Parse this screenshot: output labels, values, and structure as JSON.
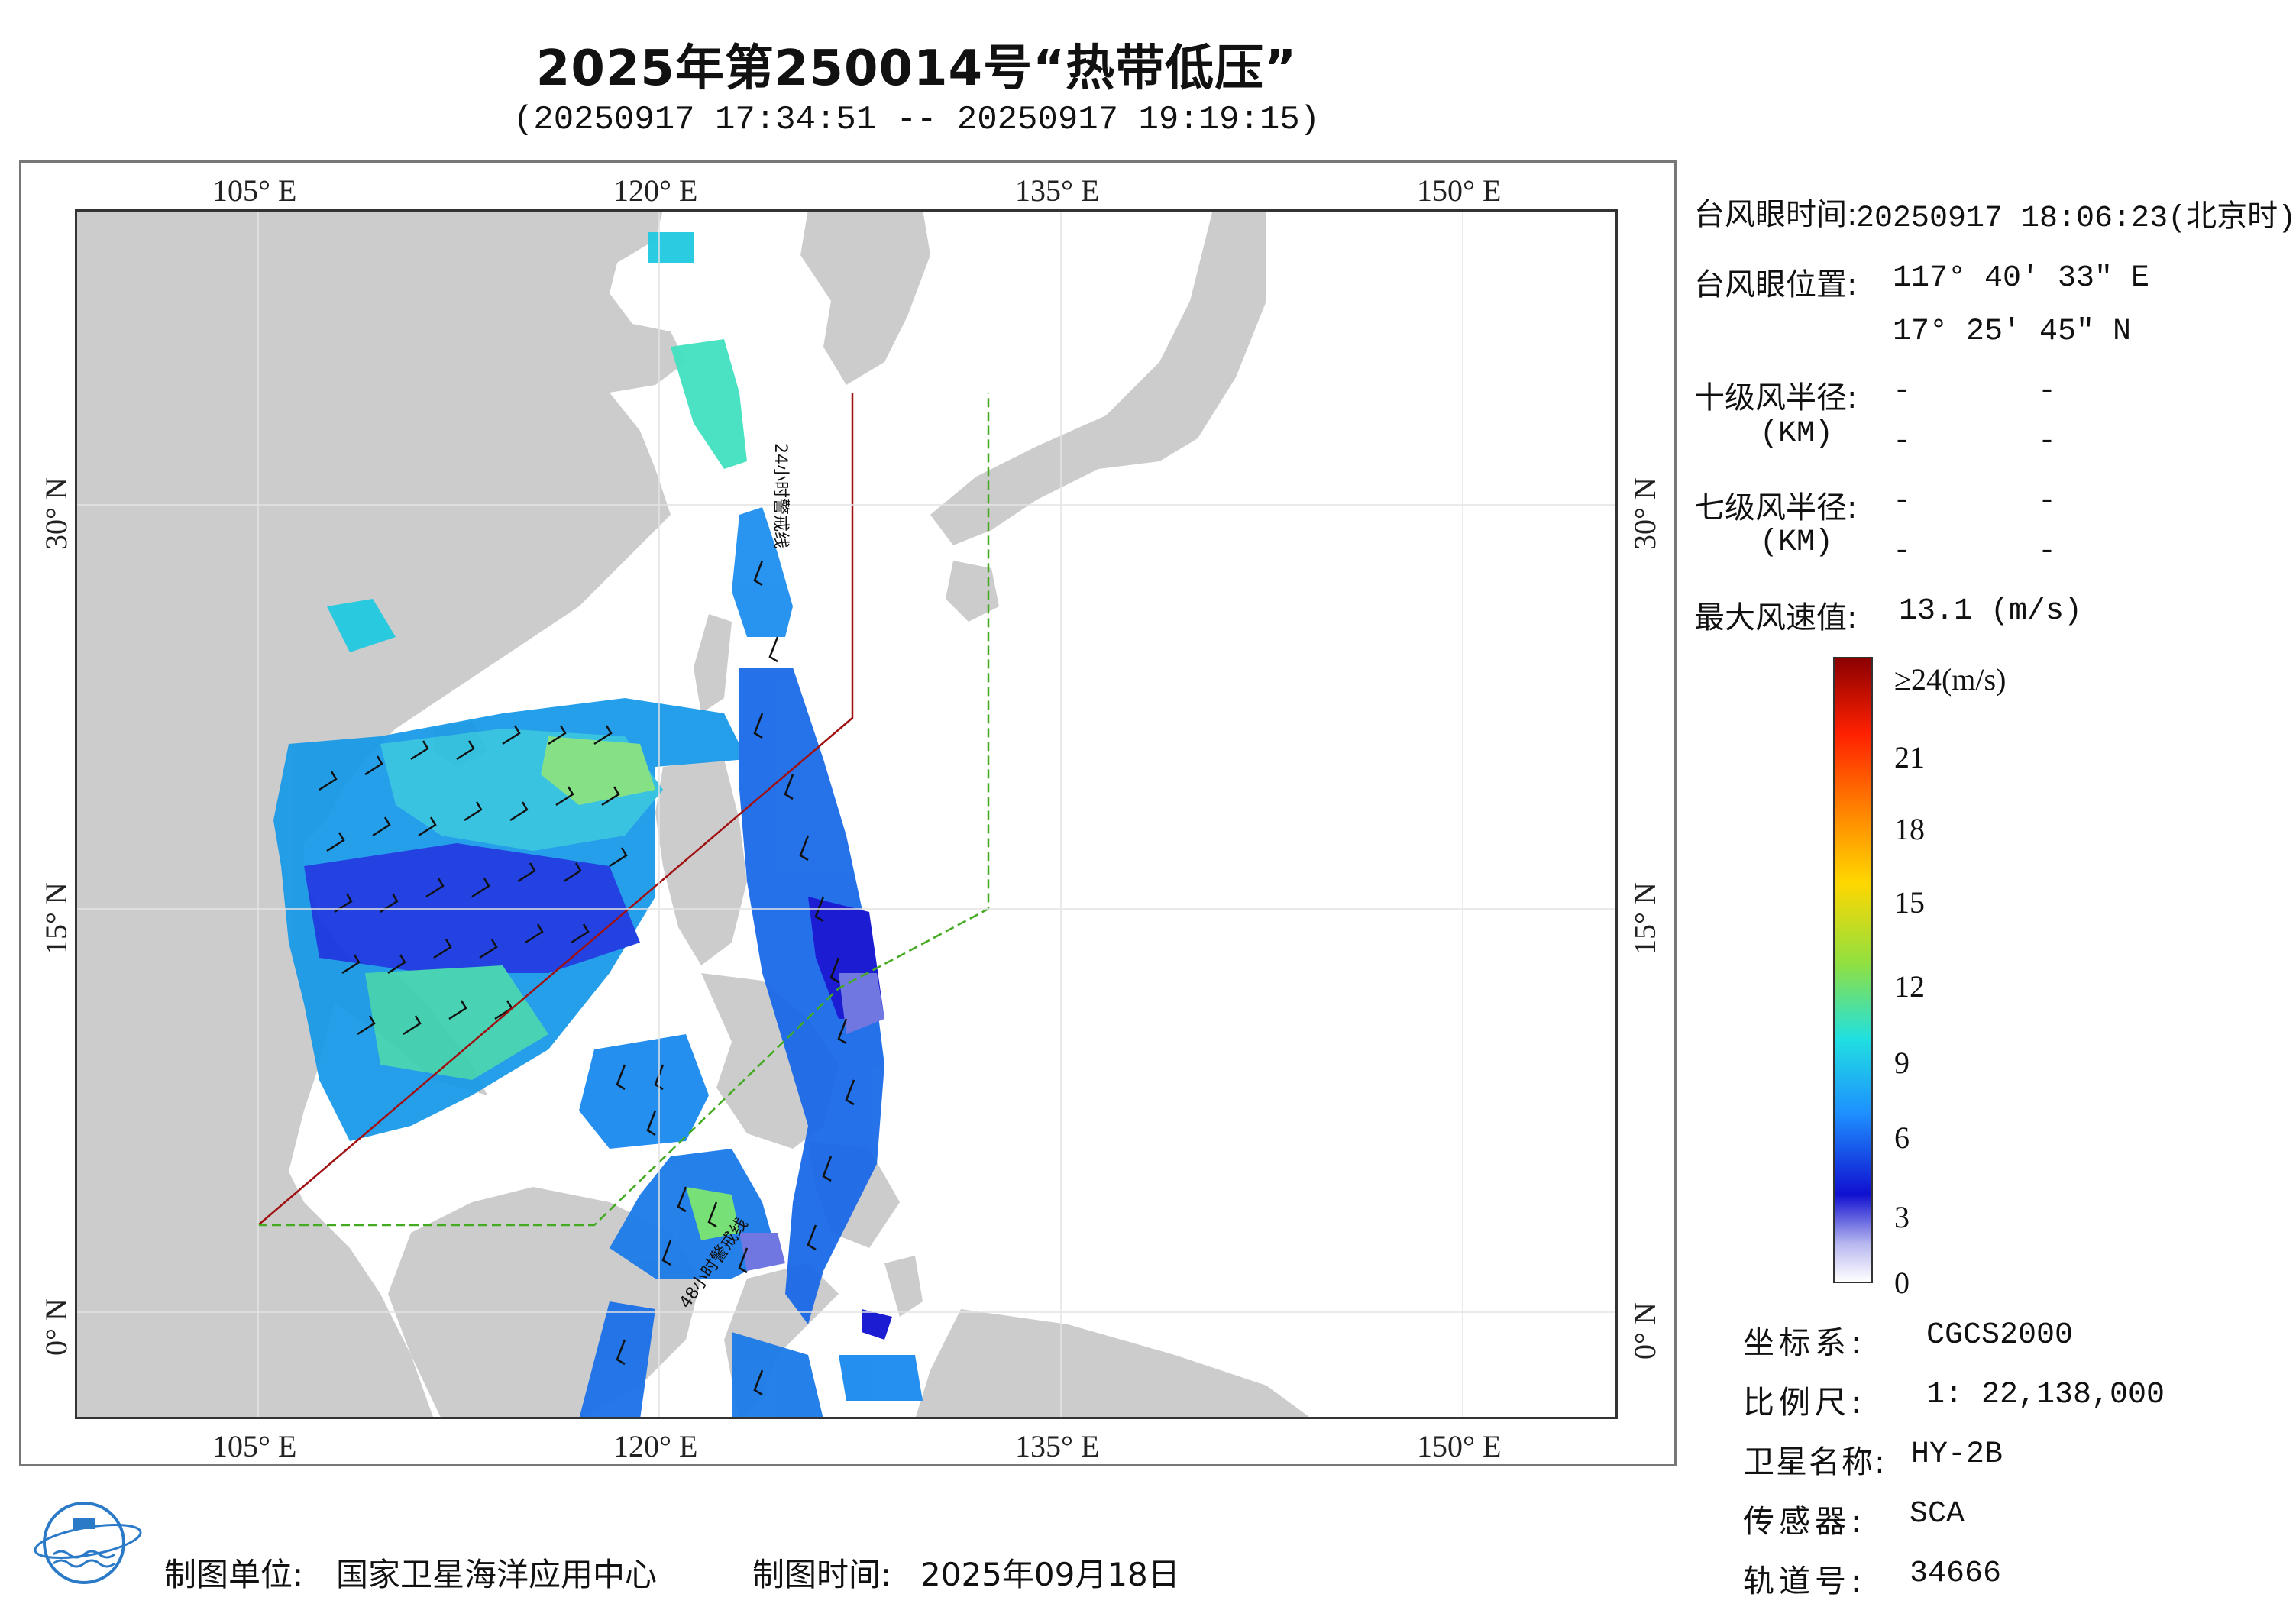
{
  "title": "2025年第250014号“热带低压”",
  "subtitle": "(20250917 17:34:51 -- 20250917 19:19:15)",
  "map": {
    "lon_labels": [
      "105° E",
      "120° E",
      "135° E",
      "150° E"
    ],
    "lat_labels": [
      "30° N",
      "15° N",
      "0° N"
    ],
    "warning_line_24h": "24小时警戒线",
    "warning_line_48h": "48小时警戒线",
    "colors": {
      "land": "#cccccc",
      "ocean": "#ffffff",
      "warning24": "#a01010",
      "warning48": "#44aa22"
    }
  },
  "info": {
    "eye_time_label": "台风眼时间:",
    "eye_time_value": "20250917 18:06:23(北京时)",
    "eye_pos_label": "台风眼位置:",
    "eye_lon": "117° 40′ 33″ E",
    "eye_lat": "17° 25′ 45″ N",
    "r10_label": "十级风半径:",
    "r7_label": "七级风半径:",
    "km_label": "(KM)",
    "dash": "-",
    "max_wind_label": "最大风速值:",
    "max_wind_value": "13.1  (m/s)"
  },
  "colorbar": {
    "labels": [
      "≥24(m/s)",
      "21",
      "18",
      "15",
      "12",
      "9",
      "6",
      "3",
      "0"
    ],
    "colors": [
      "#8b0000",
      "#ff2000",
      "#ff8000",
      "#ffd700",
      "#90e040",
      "#20e0e0",
      "#1e90ff",
      "#1010d0",
      "#ffffff"
    ]
  },
  "meta": {
    "crs_label": "坐标系:",
    "crs_value": "CGCS2000",
    "scale_label": "比例尺:",
    "scale_value": "1: 22,138,000",
    "sat_label": "卫星名称:",
    "sat_value": "HY-2B",
    "sensor_label": "传感器:",
    "sensor_value": "SCA",
    "orbit_label": "轨道号:",
    "orbit_value": "34666"
  },
  "footer": {
    "producer_label": "制图单位:",
    "producer_value": "国家卫星海洋应用中心",
    "date_label": "制图时间:",
    "date_value": "2025年09月18日"
  }
}
